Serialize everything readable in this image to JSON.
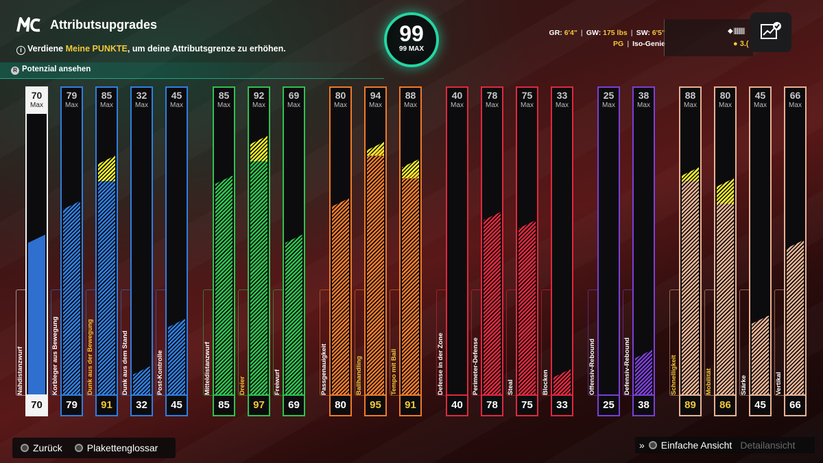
{
  "header": {
    "logo": "MC",
    "title": "Attributsupgrades",
    "subtitle_pre": "Verdiene ",
    "subtitle_highlight": "Meine PUNKTE",
    "subtitle_post": ", um deine Attributsgrenze zu erhöhen.",
    "potential_button": "Potenzial ansehen"
  },
  "overall": {
    "value": "99",
    "max_label": "99 MAX"
  },
  "player_info": {
    "gr_label": "GR:",
    "gr_value": "6'4\"",
    "gw_label": "GW:",
    "gw_value": "175 lbs",
    "sw_label": "SW:",
    "sw_value": "6'5\"",
    "position": "PG",
    "archetype": "Iso-Genie",
    "currency_partial": "3.("
  },
  "attributes": [
    {
      "name": "Nahdistanzwurf",
      "current": "70",
      "max": "70",
      "max_label": "Max",
      "color": "#f3f3f3",
      "base_pct": 0.57,
      "boost_pct": 0,
      "white": true,
      "gold": false
    },
    {
      "name": "Korbleger aus Bewegung",
      "current": "79",
      "max": "79",
      "max_label": "Max",
      "color": "#2f7ee0",
      "base_pct": 0.69,
      "boost_pct": 0,
      "white": false,
      "gold": false
    },
    {
      "name": "Dunk aus der Bewegung",
      "current": "91",
      "max": "85",
      "max_label": "Max",
      "color": "#2f7ee0",
      "base_pct": 0.79,
      "boost_pct": 0.06,
      "white": false,
      "gold": true
    },
    {
      "name": "Dunk aus dem Stand",
      "current": "32",
      "max": "32",
      "max_label": "Max",
      "color": "#2f7ee0",
      "base_pct": 0.1,
      "boost_pct": 0,
      "white": false,
      "gold": false
    },
    {
      "name": "Post-Kontrolle",
      "current": "45",
      "max": "45",
      "max_label": "Max",
      "color": "#2f7ee0",
      "base_pct": 0.27,
      "boost_pct": 0,
      "white": false,
      "gold": false
    },
    {
      "name": "Mitteldistanzwurf",
      "current": "85",
      "max": "85",
      "max_label": "Max",
      "color": "#2fc24f",
      "base_pct": 0.78,
      "boost_pct": 0,
      "white": false,
      "gold": false
    },
    {
      "name": "Dreier",
      "current": "97",
      "max": "92",
      "max_label": "Max",
      "color": "#2fc24f",
      "base_pct": 0.86,
      "boost_pct": 0.06,
      "white": false,
      "gold": true
    },
    {
      "name": "Freiwurf",
      "current": "69",
      "max": "69",
      "max_label": "Max",
      "color": "#2fc24f",
      "base_pct": 0.57,
      "boost_pct": 0,
      "white": false,
      "gold": false
    },
    {
      "name": "Passgenauigkeit",
      "current": "80",
      "max": "80",
      "max_label": "Max",
      "color": "#ee7a2a",
      "base_pct": 0.7,
      "boost_pct": 0,
      "white": false,
      "gold": false
    },
    {
      "name": "Ballhandling",
      "current": "95",
      "max": "94",
      "max_label": "Max",
      "color": "#ee7a2a",
      "base_pct": 0.88,
      "boost_pct": 0.02,
      "white": false,
      "gold": true
    },
    {
      "name": "Tempo mit Ball",
      "current": "91",
      "max": "88",
      "max_label": "Max",
      "color": "#ee7a2a",
      "base_pct": 0.8,
      "boost_pct": 0.04,
      "white": false,
      "gold": true
    },
    {
      "name": "Defense in der Zone",
      "current": "40",
      "max": "40",
      "max_label": "Max",
      "color": "#e0283e",
      "base_pct": 0.0,
      "boost_pct": 0,
      "white": false,
      "gold": false
    },
    {
      "name": "Perimeter-Defense",
      "current": "78",
      "max": "78",
      "max_label": "Max",
      "color": "#e0283e",
      "base_pct": 0.65,
      "boost_pct": 0,
      "white": false,
      "gold": false
    },
    {
      "name": "Steal",
      "current": "75",
      "max": "75",
      "max_label": "Max",
      "color": "#e0283e",
      "base_pct": 0.62,
      "boost_pct": 0,
      "white": false,
      "gold": false
    },
    {
      "name": "Blocken",
      "current": "33",
      "max": "33",
      "max_label": "Max",
      "color": "#e0283e",
      "base_pct": 0.09,
      "boost_pct": 0,
      "white": false,
      "gold": false
    },
    {
      "name": "Offensiv-Rebound",
      "current": "25",
      "max": "25",
      "max_label": "Max",
      "color": "#7b3fd6",
      "base_pct": 0.0,
      "boost_pct": 0,
      "white": false,
      "gold": false
    },
    {
      "name": "Defensiv-Rebound",
      "current": "38",
      "max": "38",
      "max_label": "Max",
      "color": "#7b3fd6",
      "base_pct": 0.16,
      "boost_pct": 0,
      "white": false,
      "gold": false
    },
    {
      "name": "Schnelligkeit",
      "current": "89",
      "max": "88",
      "max_label": "Max",
      "color": "#e8b293",
      "base_pct": 0.79,
      "boost_pct": 0.02,
      "white": false,
      "gold": true
    },
    {
      "name": "Mobilität",
      "current": "86",
      "max": "80",
      "max_label": "Max",
      "color": "#e8b293",
      "base_pct": 0.71,
      "boost_pct": 0.06,
      "white": false,
      "gold": true
    },
    {
      "name": "Stärke",
      "current": "45",
      "max": "45",
      "max_label": "Max",
      "color": "#e8b293",
      "base_pct": 0.28,
      "boost_pct": 0,
      "white": false,
      "gold": false
    },
    {
      "name": "Vertikal",
      "current": "66",
      "max": "66",
      "max_label": "Max",
      "color": "#e8b293",
      "base_pct": 0.55,
      "boost_pct": 0,
      "white": false,
      "gold": false
    }
  ],
  "footer": {
    "back": "Zurück",
    "glossary": "Plakettenglossar",
    "simple_view": "Einfache Ansicht",
    "detail_view": "Detailansicht"
  }
}
